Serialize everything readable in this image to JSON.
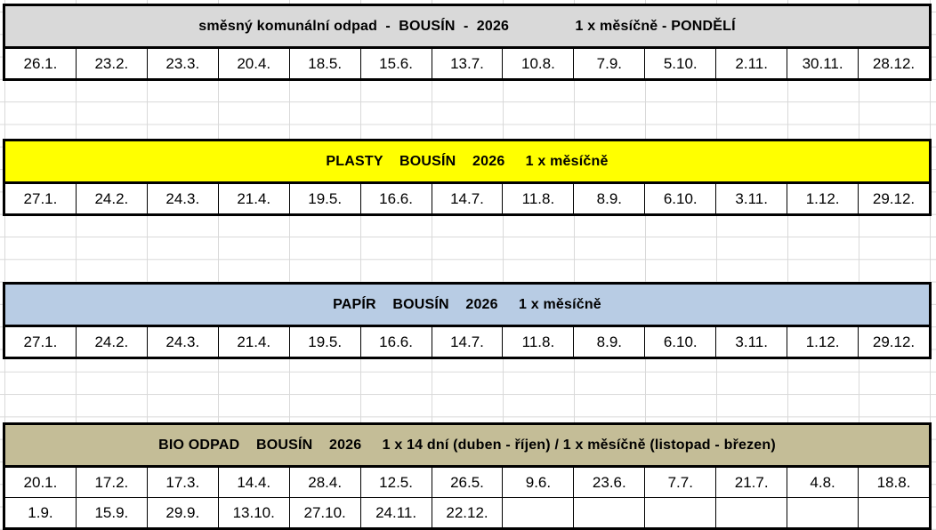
{
  "page": {
    "gridline_color": "#d9d9d9",
    "background_color": "#ffffff",
    "border_color": "#000000",
    "text_color": "#000000"
  },
  "tables": [
    {
      "id": "smesny-komunalni-odpad",
      "header": {
        "title": "směsný komunální odpad  -  BOUSÍN  -  2026                1 x měsíčně - PONDĚLÍ",
        "bg_color": "#d9d9d9"
      },
      "rows": [
        [
          "26.1.",
          "23.2.",
          "23.3.",
          "20.4.",
          "18.5.",
          "15.6.",
          "13.7.",
          "10.8.",
          "7.9.",
          "5.10.",
          "2.11.",
          "30.11.",
          "28.12."
        ]
      ]
    },
    {
      "id": "plasty",
      "header": {
        "title": "PLASTY    BOUSÍN    2026     1 x měsíčně",
        "bg_color": "#ffff00"
      },
      "rows": [
        [
          "27.1.",
          "24.2.",
          "24.3.",
          "21.4.",
          "19.5.",
          "16.6.",
          "14.7.",
          "11.8.",
          "8.9.",
          "6.10.",
          "3.11.",
          "1.12.",
          "29.12."
        ]
      ]
    },
    {
      "id": "papir",
      "header": {
        "title": "PAPÍR    BOUSÍN    2026     1 x měsíčně",
        "bg_color": "#b8cce4"
      },
      "rows": [
        [
          "27.1.",
          "24.2.",
          "24.3.",
          "21.4.",
          "19.5.",
          "16.6.",
          "14.7.",
          "11.8.",
          "8.9.",
          "6.10.",
          "3.11.",
          "1.12.",
          "29.12."
        ]
      ]
    },
    {
      "id": "bio-odpad",
      "header": {
        "title": "BIO ODPAD    BOUSÍN    2026     1 x 14 dní (duben - říjen) / 1 x měsíčně (listopad - březen)",
        "bg_color": "#c4bd97"
      },
      "rows": [
        [
          "20.1.",
          "17.2.",
          "17.3.",
          "14.4.",
          "28.4.",
          "12.5.",
          "26.5.",
          "9.6.",
          "23.6.",
          "7.7.",
          "21.7.",
          "4.8.",
          "18.8."
        ],
        [
          "1.9.",
          "15.9.",
          "29.9.",
          "13.10.",
          "27.10.",
          "24.11.",
          "22.12.",
          "",
          "",
          "",
          "",
          "",
          ""
        ]
      ]
    }
  ]
}
